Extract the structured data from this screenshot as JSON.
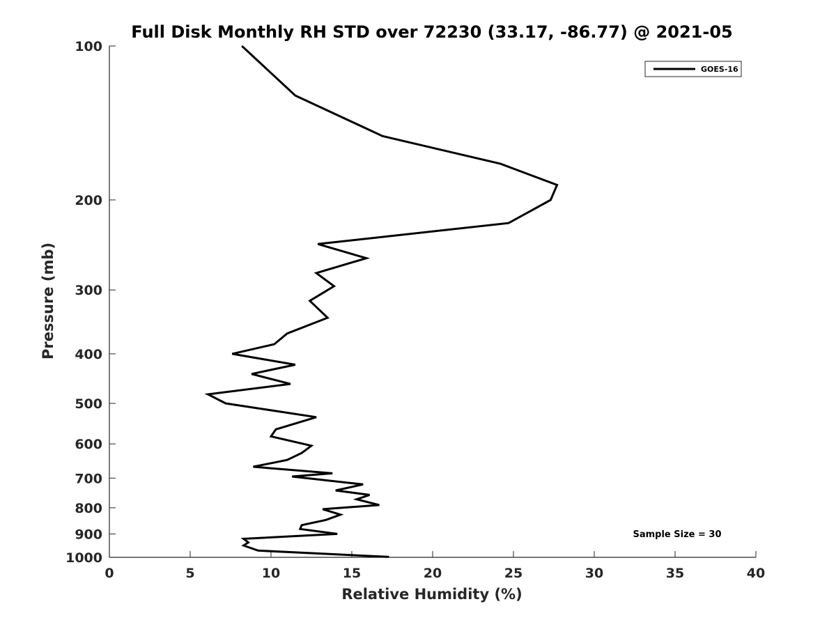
{
  "chart_data": {
    "type": "line",
    "title": "Full Disk Monthly RH STD over 72230 (33.17, -86.77) @ 2021-05",
    "xlabel": "Relative Humidity (%)",
    "ylabel": "Pressure (mb)",
    "xlim": [
      0,
      40
    ],
    "ylim": [
      100,
      1000
    ],
    "y_scale": "log",
    "y_reversed": true,
    "xticks": [
      0,
      5,
      10,
      15,
      20,
      25,
      30,
      35,
      40
    ],
    "xtick_labels": [
      "0",
      "5",
      "10",
      "15",
      "20",
      "25",
      "30",
      "35",
      "40"
    ],
    "yticks": [
      100,
      200,
      300,
      400,
      500,
      600,
      700,
      800,
      900,
      1000
    ],
    "ytick_labels": [
      "100",
      "200",
      "300",
      "400",
      "500",
      "600",
      "700",
      "800",
      "900",
      "1000"
    ],
    "grid": false,
    "legend_position": "top-right",
    "annotation": "Sample Size = 30",
    "line_color": "#000000",
    "series": [
      {
        "name": "GOES-16",
        "x": [
          8.2,
          11.5,
          16.9,
          24.2,
          27.7,
          27.3,
          24.7,
          12.9,
          15.9,
          12.8,
          13.9,
          12.4,
          13.5,
          11.0,
          10.2,
          7.6,
          11.5,
          8.8,
          11.2,
          6.1,
          7.2,
          12.8,
          10.3,
          10.0,
          12.5,
          11.9,
          11.0,
          8.9,
          13.8,
          11.3,
          15.7,
          14.0,
          16.1,
          15.3,
          16.7,
          13.2,
          14.3,
          13.4,
          11.9,
          11.8,
          14.1,
          8.3,
          8.6,
          8.3,
          9.2,
          17.3
        ],
        "y": [
          100,
          125,
          150,
          170,
          187,
          200,
          222,
          244,
          260,
          278,
          295,
          315,
          340,
          365,
          383,
          400,
          420,
          438,
          458,
          480,
          500,
          532,
          562,
          580,
          605,
          625,
          645,
          665,
          685,
          695,
          720,
          740,
          755,
          770,
          790,
          805,
          825,
          845,
          865,
          880,
          900,
          920,
          935,
          948,
          970,
          998
        ]
      }
    ]
  }
}
